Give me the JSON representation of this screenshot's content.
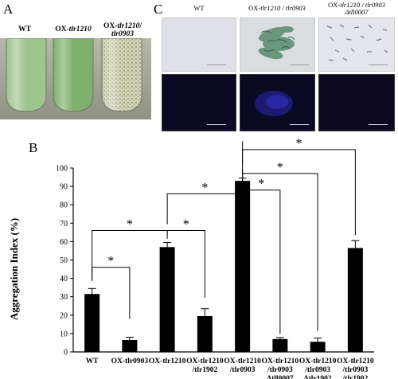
{
  "panel_a": {
    "letter": "A",
    "tubes": [
      {
        "label_plain": "WT",
        "label_italic": "",
        "label_tail": "",
        "color": "#9fc58f"
      },
      {
        "label_plain": "OX-",
        "label_italic": "tlr1210",
        "label_tail": "",
        "color": "#7fb06e"
      },
      {
        "label_plain": "OX-",
        "label_italic": "tlr1210",
        "label_tail": "/",
        "label_line2": "tlr0903",
        "color": "#d2d2b8"
      }
    ]
  },
  "panel_c": {
    "letter": "C",
    "columns": [
      {
        "line1_plain": "WT",
        "line1_italic": "",
        "line1_tail": "",
        "line2": ""
      },
      {
        "line1_plain": "OX-",
        "line1_italic": "tlr1210 / tlr0903",
        "line1_tail": "",
        "line2": ""
      },
      {
        "line1_plain": "OX-",
        "line1_italic": "tlr1210 / tlr0903",
        "line1_tail": "",
        "line2": "Δtll0007"
      }
    ],
    "brightfield_colors": [
      "#dfe0e8",
      "#d9dde0",
      "#e4e6ec"
    ],
    "fluorescence_colors": [
      "#0b0a22",
      "#14134a",
      "#0d0a20"
    ]
  },
  "panel_b": {
    "letter": "B"
  },
  "chart_data": {
    "type": "bar",
    "ylabel": "Aggregation Index (%)",
    "ylim": [
      0,
      100
    ],
    "yticks": [
      0,
      10,
      20,
      30,
      40,
      50,
      60,
      70,
      80,
      90,
      100
    ],
    "categories": [
      [
        "WT"
      ],
      [
        "OX-tlr0903"
      ],
      [
        "OX-tlr1210"
      ],
      [
        "OX-tlr1210",
        "/tlr1902"
      ],
      [
        "OX-tlr1210",
        "/tlr0903"
      ],
      [
        "OX-tlr1210",
        "/tlr0903",
        "Δtll0007"
      ],
      [
        "OX-tlr1210",
        "/tlr0903",
        "Δtlr1902"
      ],
      [
        "OX-tlr1210",
        "/tlr0903",
        "/tlr1902"
      ]
    ],
    "values": [
      31.5,
      6.5,
      57,
      19.5,
      93,
      7,
      5.5,
      56.5
    ],
    "errors": [
      3,
      1.5,
      2.5,
      4,
      1.5,
      0.8,
      2,
      4
    ],
    "bar_color": "#000000",
    "significance": [
      {
        "from": 0,
        "to": 1,
        "label": "*"
      },
      {
        "from": 0,
        "to": 2,
        "label": "*"
      },
      {
        "from": 2,
        "to": 3,
        "label": "*"
      },
      {
        "from": 2,
        "to": 4,
        "label": "*"
      },
      {
        "from": 4,
        "to": 5,
        "label": "*"
      },
      {
        "from": 4,
        "to": 6,
        "label": "*"
      },
      {
        "from": 4,
        "to": 7,
        "label": "*"
      }
    ]
  }
}
